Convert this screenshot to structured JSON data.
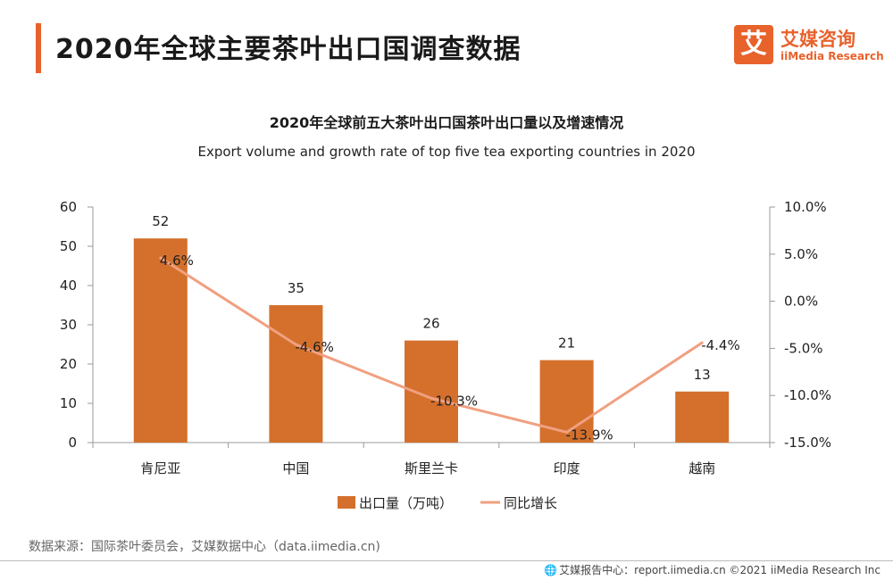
{
  "header": {
    "title": "2020年全球主要茶叶出口国调查数据",
    "logo_mark": "艾",
    "logo_cn": "艾媒咨询",
    "logo_en": "iiMedia Research"
  },
  "chart_data": {
    "type": "bar",
    "title": "2020年全球前五大茶叶出口国茶叶出口量以及增速情况",
    "subtitle": "Export volume and growth rate of top five tea exporting countries in 2020",
    "categories": [
      "肯尼亚",
      "中国",
      "斯里兰卡",
      "印度",
      "越南"
    ],
    "series": [
      {
        "name": "出口量（万吨）",
        "type": "bar",
        "axis": "left",
        "color": "#d4702c",
        "values": [
          52,
          35,
          26,
          21,
          13
        ],
        "labels": [
          "52",
          "35",
          "26",
          "21",
          "13"
        ]
      },
      {
        "name": "同比增长",
        "type": "line",
        "axis": "right",
        "color": "#f0a080",
        "values": [
          4.6,
          -4.6,
          -10.3,
          -13.9,
          -4.4
        ],
        "labels": [
          "4.6%",
          "-4.6%",
          "-10.3%",
          "-13.9%",
          "-4.4%"
        ]
      }
    ],
    "y_left": {
      "ylim": [
        0,
        60
      ],
      "ticks": [
        "0",
        "10",
        "20",
        "30",
        "40",
        "50",
        "60"
      ]
    },
    "y_right": {
      "ylim": [
        -15,
        10
      ],
      "ticks": [
        "-15.0%",
        "-10.0%",
        "-5.0%",
        "0.0%",
        "5.0%",
        "10.0%"
      ]
    },
    "grid": false,
    "legend_position": "bottom"
  },
  "footer": {
    "source": "数据来源：国际茶叶委员会，艾媒数据中心（data.iimedia.cn)",
    "globe_icon": "globe-icon",
    "report": "艾媒报告中心：report.iimedia.cn   ©2021  iiMedia Research  Inc"
  }
}
